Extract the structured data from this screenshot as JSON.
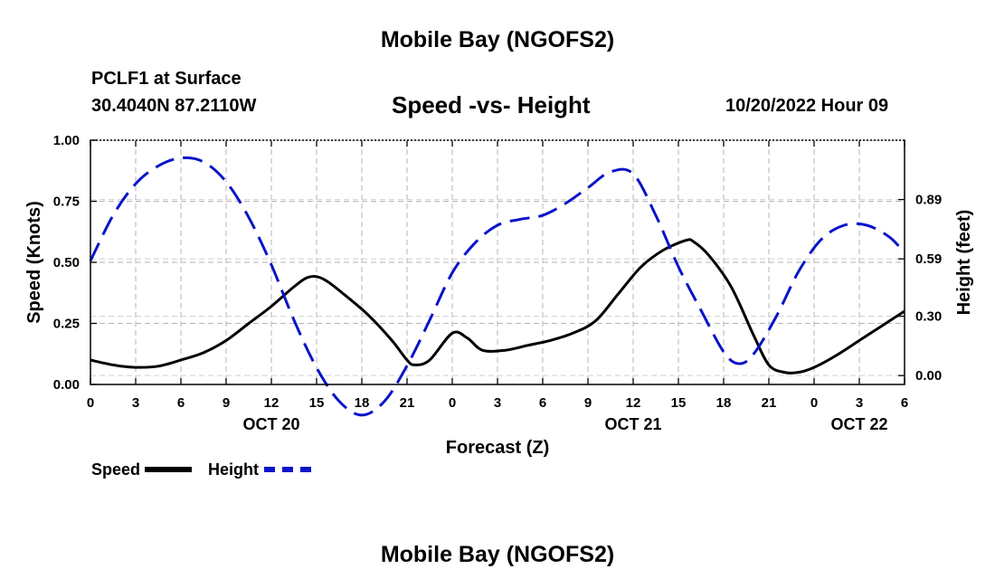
{
  "header": {
    "title": "Mobile Bay (NGOFS2)",
    "station": "PCLF1 at Surface",
    "coords": "30.4040N  87.2110W",
    "subtitle": "Speed -vs- Height",
    "run_time": "10/20/2022 Hour 09"
  },
  "footer": {
    "title": "Mobile Bay (NGOFS2)"
  },
  "legend": {
    "speed_label": "Speed",
    "height_label": "Height"
  },
  "chart_data": {
    "type": "line",
    "title": "Speed -vs- Height",
    "xlabel": "Forecast (Z)",
    "ylabel": "Speed (Knots)",
    "y2label": "Height (feet)",
    "xlim": [
      0,
      54
    ],
    "ylim": [
      0,
      1.0
    ],
    "y2lim": [
      -0.045,
      1.19
    ],
    "x_tick_values": [
      0,
      3,
      6,
      9,
      12,
      15,
      18,
      21,
      24,
      27,
      30,
      33,
      36,
      39,
      42,
      45,
      48,
      51,
      54
    ],
    "x_tick_labels": [
      "0",
      "3",
      "6",
      "9",
      "12",
      "15",
      "18",
      "21",
      "0",
      "3",
      "6",
      "9",
      "12",
      "15",
      "18",
      "21",
      "0",
      "3",
      "6"
    ],
    "date_labels": [
      {
        "x": 12,
        "label": "OCT 20"
      },
      {
        "x": 36,
        "label": "OCT 21"
      },
      {
        "x": 51,
        "label": "OCT 22"
      }
    ],
    "y_ticks": [
      0.0,
      0.25,
      0.5,
      0.75,
      1.0
    ],
    "y_tick_labels": [
      "0.00",
      "0.25",
      "0.50",
      "0.75",
      "1.00"
    ],
    "y2_ticks": [
      0.0,
      0.3,
      0.59,
      0.89
    ],
    "y2_tick_labels": [
      "0.00",
      "0.30",
      "0.59",
      "0.89"
    ],
    "grid": true,
    "legend_position": "bottom-left",
    "series": [
      {
        "name": "Speed",
        "axis": "left",
        "color": "#000000",
        "style": "solid",
        "x": [
          0,
          1.5,
          3,
          4.5,
          6,
          7.5,
          9,
          10.5,
          12,
          13.5,
          14.5,
          15.5,
          17,
          18.5,
          20,
          21,
          21.5,
          22.5,
          24,
          25,
          26,
          27.5,
          29,
          30.5,
          32,
          33.5,
          35,
          36.5,
          38,
          39.5,
          40,
          41,
          42.5,
          44,
          45,
          46,
          47,
          48,
          49.5,
          51,
          52.5,
          54
        ],
        "y": [
          0.1,
          0.08,
          0.07,
          0.075,
          0.1,
          0.13,
          0.18,
          0.25,
          0.32,
          0.4,
          0.44,
          0.43,
          0.36,
          0.28,
          0.18,
          0.1,
          0.08,
          0.1,
          0.21,
          0.19,
          0.14,
          0.14,
          0.16,
          0.18,
          0.21,
          0.26,
          0.37,
          0.48,
          0.55,
          0.59,
          0.585,
          0.53,
          0.4,
          0.2,
          0.08,
          0.05,
          0.05,
          0.07,
          0.12,
          0.18,
          0.24,
          0.3
        ]
      },
      {
        "name": "Height",
        "axis": "right",
        "color": "#0a14c8",
        "style": "dashed",
        "x": [
          0,
          1.5,
          3,
          4.5,
          6,
          7.5,
          9,
          10.5,
          12,
          13.5,
          15,
          16.5,
          18,
          19.5,
          21,
          22.5,
          24,
          25.5,
          27,
          28.5,
          30,
          31.5,
          33,
          34.5,
          36,
          37.5,
          39,
          40.5,
          42,
          43,
          44,
          45.5,
          47,
          48.5,
          50,
          51.5,
          53,
          54
        ],
        "y": [
          0.58,
          0.81,
          0.97,
          1.06,
          1.1,
          1.08,
          0.98,
          0.8,
          0.56,
          0.28,
          0.04,
          -0.13,
          -0.2,
          -0.13,
          0.05,
          0.28,
          0.52,
          0.67,
          0.76,
          0.79,
          0.81,
          0.87,
          0.95,
          1.03,
          1.02,
          0.81,
          0.55,
          0.33,
          0.12,
          0.06,
          0.11,
          0.3,
          0.53,
          0.69,
          0.76,
          0.76,
          0.7,
          0.62
        ]
      }
    ]
  }
}
